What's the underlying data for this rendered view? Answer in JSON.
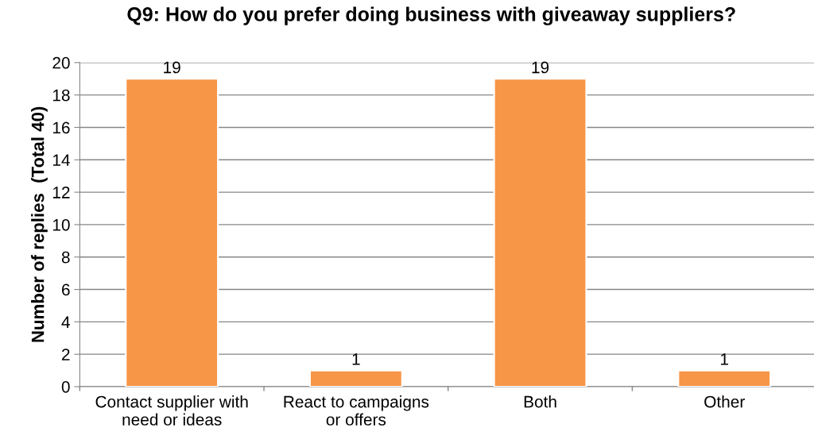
{
  "chart_data": {
    "type": "bar",
    "title": "Q9: How do you prefer doing business with giveaway suppliers?",
    "ylabel": "Number of replies  (Total 40)",
    "categories": [
      "Contact supplier with\nneed or ideas",
      "React to campaigns\nor offers",
      "Both",
      "Other"
    ],
    "values": [
      19,
      1,
      19,
      1
    ],
    "color": "#f79646",
    "ylim": [
      0,
      20
    ],
    "yticks": [
      0,
      2,
      4,
      6,
      8,
      10,
      12,
      14,
      16,
      18,
      20
    ],
    "grid": "y",
    "data_labels": true,
    "legend": false
  }
}
